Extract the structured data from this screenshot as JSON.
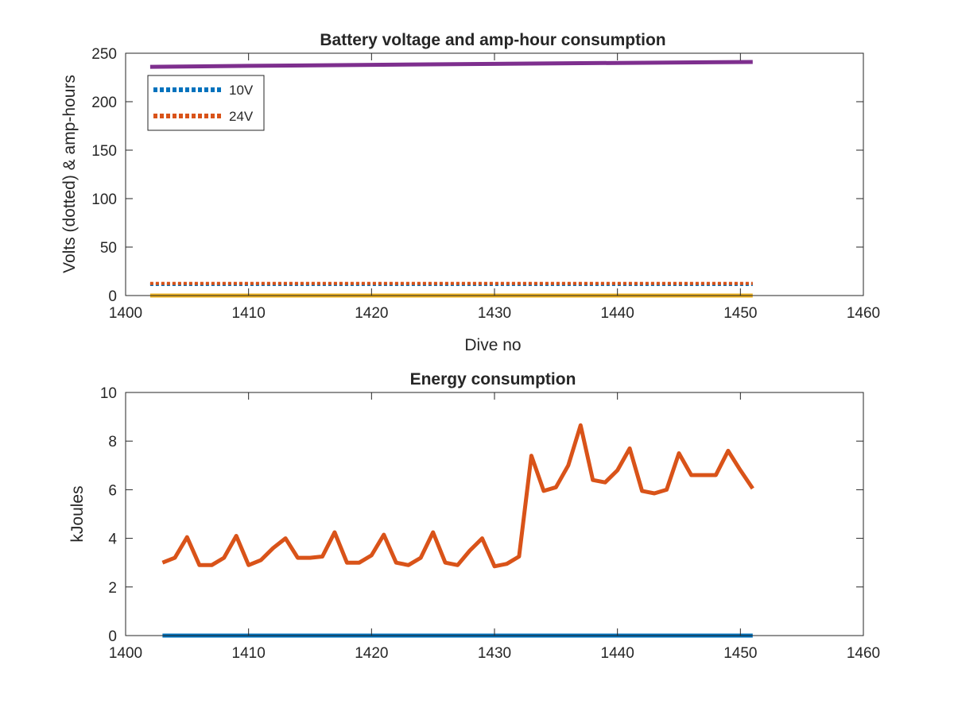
{
  "chart_data": [
    {
      "type": "line",
      "title": "Battery voltage and amp-hour consumption",
      "xlabel": "Dive no",
      "ylabel": "Volts (dotted) & amp-hours",
      "xlim": [
        1400,
        1460
      ],
      "ylim": [
        0,
        250
      ],
      "xticks": [
        "1400",
        "1410",
        "1420",
        "1430",
        "1440",
        "1450",
        "1460"
      ],
      "yticks": [
        "0",
        "50",
        "100",
        "150",
        "200",
        "250"
      ],
      "grid": false,
      "legend_position": "top-left",
      "series": [
        {
          "name": "10V",
          "style": "dotted",
          "color": "#0072BD",
          "x": [
            1402,
            1451
          ],
          "values": [
            11.5,
            11.5
          ]
        },
        {
          "name": "24V",
          "style": "dotted",
          "color": "#D95319",
          "x": [
            1402,
            1451
          ],
          "values": [
            12.5,
            12.5
          ]
        },
        {
          "style": "solid",
          "color": "#7E2F8E",
          "x": [
            1402,
            1410,
            1420,
            1430,
            1440,
            1451
          ],
          "values": [
            236,
            237,
            238,
            239,
            240,
            241
          ]
        },
        {
          "style": "solid",
          "color": "#EDB120",
          "x": [
            1402,
            1451
          ],
          "values": [
            0,
            0
          ]
        }
      ]
    },
    {
      "type": "line",
      "title": "Energy consumption",
      "xlabel": "",
      "ylabel": "kJoules",
      "xlim": [
        1400,
        1460
      ],
      "ylim": [
        0,
        10
      ],
      "xticks": [
        "1400",
        "1410",
        "1420",
        "1430",
        "1440",
        "1450",
        "1460"
      ],
      "yticks": [
        "0",
        "2",
        "4",
        "6",
        "8",
        "10"
      ],
      "grid": false,
      "series": [
        {
          "style": "solid",
          "color": "#D95319",
          "x": [
            1403,
            1404,
            1405,
            1406,
            1407,
            1408,
            1409,
            1410,
            1411,
            1412,
            1413,
            1414,
            1415,
            1416,
            1417,
            1418,
            1419,
            1420,
            1421,
            1422,
            1423,
            1424,
            1425,
            1426,
            1427,
            1428,
            1429,
            1430,
            1431,
            1432,
            1433,
            1434,
            1435,
            1436,
            1437,
            1438,
            1439,
            1440,
            1441,
            1442,
            1443,
            1444,
            1445,
            1446,
            1447,
            1448,
            1449,
            1450,
            1451
          ],
          "values": [
            3.0,
            3.2,
            4.05,
            2.9,
            2.9,
            3.2,
            4.1,
            2.9,
            3.1,
            3.6,
            4.0,
            3.2,
            3.2,
            3.25,
            4.25,
            3.0,
            3.0,
            3.3,
            4.15,
            3.0,
            2.9,
            3.2,
            4.25,
            3.0,
            2.9,
            3.5,
            4.0,
            2.85,
            2.95,
            3.25,
            7.4,
            5.95,
            6.1,
            7.0,
            8.65,
            6.4,
            6.3,
            6.8,
            7.7,
            5.95,
            5.85,
            6.0,
            7.5,
            6.6,
            6.6,
            6.6,
            7.6,
            6.8,
            6.05
          ]
        },
        {
          "style": "solid",
          "color": "#0072BD",
          "x": [
            1403,
            1451
          ],
          "values": [
            0,
            0
          ]
        }
      ]
    }
  ]
}
